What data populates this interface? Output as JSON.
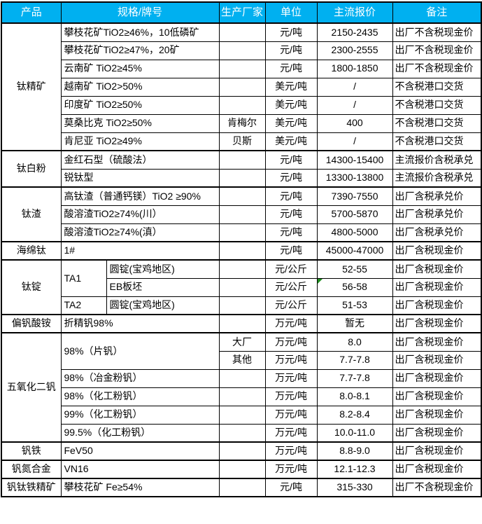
{
  "page": {
    "bg": "#FFFFFF",
    "border_color": "#000000",
    "marker_color": "#1e8e1e"
  },
  "header": {
    "bg": "#00B0F0",
    "text_color": "#FFFFFF",
    "columns": [
      "产品",
      "规格/牌号",
      "生产厂家",
      "单位",
      "主流报价",
      "备注"
    ]
  },
  "sections": [
    {
      "product": "钛精矿",
      "rows": [
        {
          "spec": "攀枝花矿TiO2≥46%，10低磷矿",
          "maker": "",
          "unit": "元/吨",
          "price": "2150-2435",
          "note": "出厂不含税现金价"
        },
        {
          "spec": "攀枝花矿TiO2≥47%，20矿",
          "maker": "",
          "unit": "元/吨",
          "price": "2300-2555",
          "note": "出厂不含税现金价"
        },
        {
          "spec": "云南矿 TiO2≥45%",
          "maker": "",
          "unit": "元/吨",
          "price": "1800-1850",
          "note": "出厂不含税现金价"
        },
        {
          "spec": "越南矿 TiO2>50%",
          "maker": "",
          "unit": "美元/吨",
          "price": "/",
          "note": "不含税港口交货"
        },
        {
          "spec": "印度矿 TiO2≥50%",
          "maker": "",
          "unit": "美元/吨",
          "price": "/",
          "note": "不含税港口交货"
        },
        {
          "spec": "莫桑比克 TiO2≥50%",
          "maker": "肯梅尔",
          "unit": "美元/吨",
          "price": "400",
          "note": "不含税港口交货"
        },
        {
          "spec": "肯尼亚 TiO2≥49%",
          "maker": "贝斯",
          "unit": "美元/吨",
          "price": "/",
          "note": "不含税港口交货"
        }
      ]
    },
    {
      "product": "钛白粉",
      "rows": [
        {
          "spec": "金红石型（硫酸法）",
          "maker": "",
          "unit": "元/吨",
          "price": "14300-15400",
          "note": "主流报价含税承兑"
        },
        {
          "spec": "锐钛型",
          "maker": "",
          "unit": "元/吨",
          "price": "13300-13800",
          "note": "主流报价含税承兑"
        }
      ]
    },
    {
      "product": "钛渣",
      "rows": [
        {
          "spec": "高钛渣（普通钙镁）TiO2 ≥90%",
          "maker": "",
          "unit": "元/吨",
          "price": "7390-7550",
          "note": "出厂含税承兑价"
        },
        {
          "spec": "酸溶渣TiO2≥74%(川）",
          "maker": "",
          "unit": "元/吨",
          "price": "5700-5870",
          "note": "出厂含税承兑价"
        },
        {
          "spec": "酸溶渣TiO2≥74%(滇）",
          "maker": "",
          "unit": "元/吨",
          "price": "4800-5000",
          "note": "出厂含税承兑价"
        }
      ]
    },
    {
      "product": "海绵钛",
      "rows": [
        {
          "spec": "1#",
          "maker": "",
          "unit": "元/吨",
          "price": "45000-47000",
          "note": "出厂含税现金价"
        }
      ]
    },
    {
      "product": "钛锭",
      "split_spec": true,
      "rows": [
        {
          "grade": "TA1",
          "grade_rowspan": 2,
          "spec": "圆锭(宝鸡地区)",
          "maker": "",
          "unit": "元/公斤",
          "price": "52-55",
          "note": "出厂含税现金价"
        },
        {
          "spec": "EB板坯",
          "maker": "",
          "unit": "元/公斤",
          "price": "56-58",
          "marker": "green-triangle",
          "note": "出厂含税现金价"
        },
        {
          "grade": "TA2",
          "spec": "圆锭(宝鸡地区)",
          "maker": "",
          "unit": "元/公斤",
          "price": "51-53",
          "note": "出厂含税现金价"
        }
      ]
    },
    {
      "product": "偏钒酸铵",
      "rows": [
        {
          "spec": "折精钒98%",
          "maker": "",
          "unit": "万元/吨",
          "price": "暂无",
          "note": "出厂含税现金价"
        }
      ]
    },
    {
      "product": "五氧化二钒",
      "rows": [
        {
          "spec": "98%（片钒）",
          "spec_rowspan": 2,
          "maker": "大厂",
          "unit": "万元/吨",
          "price": "8.0",
          "note": "出厂含税现金价"
        },
        {
          "maker": "其他",
          "unit": "万元/吨",
          "price": "7.7-7.8",
          "note": "出厂含税现金价"
        },
        {
          "spec": "98%（冶金粉钒）",
          "maker": "",
          "unit": "万元/吨",
          "price": "7.7-7.8",
          "note": "出厂含税现金价"
        },
        {
          "spec": "98%（化工粉钒）",
          "maker": "",
          "unit": "万元/吨",
          "price": "8.0-8.1",
          "note": "出厂含税现金价"
        },
        {
          "spec": "99%（化工粉钒）",
          "maker": "",
          "unit": "万元/吨",
          "price": "8.2-8.4",
          "note": "出厂含税现金价"
        },
        {
          "spec": "99.5%（化工粉钒）",
          "maker": "",
          "unit": "万元/吨",
          "price": "10.0-11.0",
          "note": "出厂含税现金价"
        }
      ]
    },
    {
      "product": "钒铁",
      "rows": [
        {
          "spec": "FeV50",
          "maker": "",
          "unit": "万元/吨",
          "price": "8.8-9.0",
          "note": "出厂含税现金价"
        }
      ]
    },
    {
      "product": "钒氮合金",
      "rows": [
        {
          "spec": "VN16",
          "maker": "",
          "unit": "万元/吨",
          "price": "12.1-12.3",
          "note": "出厂含税现金价"
        }
      ]
    },
    {
      "product": "钒钛铁精矿",
      "rows": [
        {
          "spec": "攀枝花矿 Fe≥54%",
          "maker": "",
          "unit": "元/吨",
          "price": "315-330",
          "note": "出厂不含税现金价"
        }
      ]
    }
  ]
}
